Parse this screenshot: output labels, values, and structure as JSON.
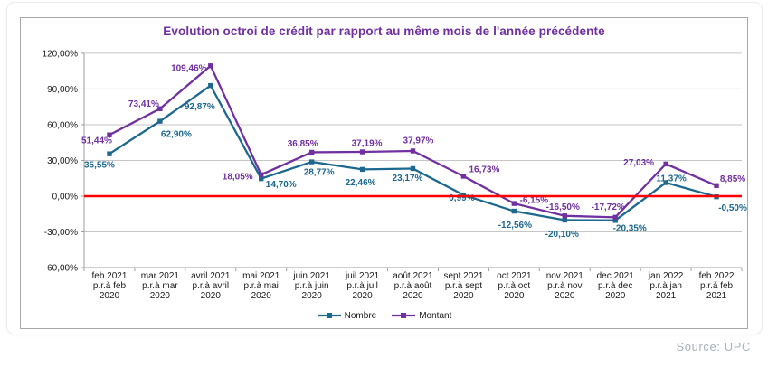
{
  "page": {
    "source_note": "Source: UPC"
  },
  "chart_data": {
    "type": "line",
    "title": "Evolution octroi de crédit par rapport au même mois de l'année précédente",
    "title_color": "#7030a0",
    "grid": true,
    "legend_position": "bottom",
    "zero_line_color": "#ff0000",
    "ylim": [
      -60,
      120
    ],
    "y_axis": {
      "labels": [
        "120,00%",
        "90,00%",
        "60,00%",
        "30,00%",
        "0,00%",
        "-30,00%",
        "-60,00%"
      ],
      "values": [
        120,
        90,
        60,
        30,
        0,
        -30,
        -60
      ]
    },
    "categories": [
      [
        "feb 2021",
        "p.r.à feb",
        "2020"
      ],
      [
        "mar 2021",
        "p.r.à mar",
        "2020"
      ],
      [
        "avril 2021",
        "p.r.à avril",
        "2020"
      ],
      [
        "mai 2021",
        "p.r.à mai",
        "2020"
      ],
      [
        "juin 2021",
        "p.r.à juin",
        "2020"
      ],
      [
        "juil 2021",
        "p.r.à juil",
        "2020"
      ],
      [
        "août 2021",
        "p.r.à août",
        "2020"
      ],
      [
        "sept 2021",
        "p.r.à sept",
        "2020"
      ],
      [
        "oct 2021",
        "p.r.à oct",
        "2020"
      ],
      [
        "nov 2021",
        "p.r.à nov",
        "2020"
      ],
      [
        "dec 2021",
        "p.r.à dec",
        "2020"
      ],
      [
        "jan 2022",
        "p.r.à jan",
        "2021"
      ],
      [
        "feb 2022",
        "p.r.à feb",
        "2021"
      ]
    ],
    "series": [
      {
        "name": "Nombre",
        "color": "#1c688e",
        "values": [
          35.55,
          62.9,
          92.87,
          14.7,
          28.77,
          22.46,
          23.17,
          0.99,
          -12.56,
          -20.1,
          -20.35,
          11.37,
          -0.5
        ],
        "labels": [
          "35,55%",
          "62,90%",
          "92,87%",
          "14,70%",
          "28,77%",
          "22,46%",
          "23,17%",
          "0,99%",
          "-12,56%",
          "-20,10%",
          "-20,35%",
          "11,37%",
          "-0,50%"
        ]
      },
      {
        "name": "Montant",
        "color": "#7030a0",
        "values": [
          51.44,
          73.41,
          109.46,
          18.05,
          36.85,
          37.19,
          37.97,
          16.73,
          -6.15,
          -16.5,
          -17.72,
          27.03,
          8.85
        ],
        "labels": [
          "51,44%",
          "73,41%",
          "109,46%",
          "18,05%",
          "36,85%",
          "37,19%",
          "37,97%",
          "16,73%",
          "-6,15%",
          "-16,50%",
          "-17,72%",
          "27,03%",
          "8,85%"
        ]
      }
    ]
  }
}
